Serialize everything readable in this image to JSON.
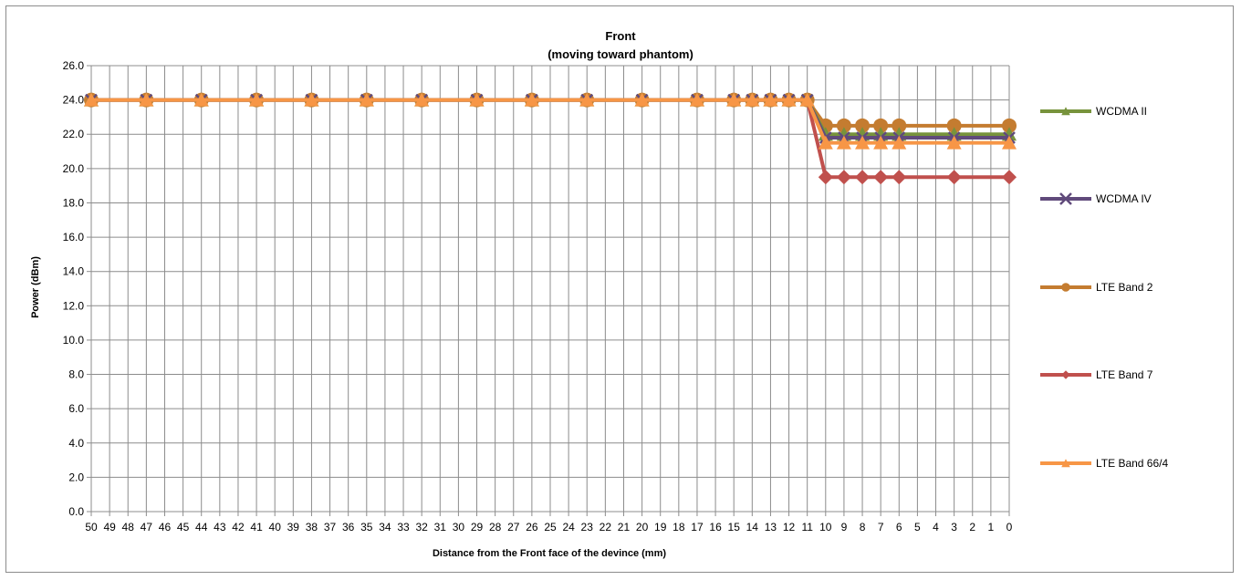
{
  "chart_data": {
    "type": "line",
    "title": "Front",
    "subtitle": "(moving toward phantom)",
    "xlabel": "Distance from the Front  face of the devince (mm)",
    "ylabel": "Power (dBm)",
    "ylim": [
      0,
      26
    ],
    "ytick_step": 2,
    "ytick_labels": [
      "0.0",
      "2.0",
      "4.0",
      "6.0",
      "8.0",
      "10.0",
      "12.0",
      "14.0",
      "16.0",
      "18.0",
      "20.0",
      "22.0",
      "24.0",
      "26.0"
    ],
    "x_categories": [
      50,
      49,
      48,
      47,
      46,
      45,
      44,
      43,
      42,
      41,
      40,
      39,
      38,
      37,
      36,
      35,
      34,
      33,
      32,
      31,
      30,
      29,
      28,
      27,
      26,
      25,
      24,
      23,
      22,
      21,
      20,
      19,
      18,
      17,
      16,
      15,
      14,
      13,
      12,
      11,
      10,
      9,
      8,
      7,
      6,
      5,
      4,
      3,
      2,
      1,
      0
    ],
    "grid": true,
    "legend_position": "right",
    "series": [
      {
        "name": "WCDMA II",
        "color": "#77933c",
        "marker": "triangle",
        "x": [
          50,
          47,
          44,
          41,
          38,
          35,
          32,
          29,
          26,
          23,
          20,
          17,
          15,
          14,
          13,
          12,
          11,
          10,
          9,
          8,
          7,
          6,
          3,
          0
        ],
        "values": [
          24,
          24,
          24,
          24,
          24,
          24,
          24,
          24,
          24,
          24,
          24,
          24,
          24,
          24,
          24,
          24,
          24,
          22,
          22,
          22,
          22,
          22,
          22,
          22
        ]
      },
      {
        "name": "WCDMA IV",
        "color": "#604a7b",
        "marker": "x",
        "x": [
          50,
          47,
          44,
          41,
          38,
          35,
          32,
          29,
          26,
          23,
          20,
          17,
          15,
          14,
          13,
          12,
          11,
          10,
          9,
          8,
          7,
          6,
          3,
          0
        ],
        "values": [
          24,
          24,
          24,
          24,
          24,
          24,
          24,
          24,
          24,
          24,
          24,
          24,
          24,
          24,
          24,
          24,
          24,
          21.8,
          21.8,
          21.8,
          21.8,
          21.8,
          21.8,
          21.8
        ]
      },
      {
        "name": "LTE Band 2",
        "color": "#c47c30",
        "marker": "circle",
        "x": [
          50,
          47,
          44,
          41,
          38,
          35,
          32,
          29,
          26,
          23,
          20,
          17,
          15,
          14,
          13,
          12,
          11,
          10,
          9,
          8,
          7,
          6,
          3,
          0
        ],
        "values": [
          24,
          24,
          24,
          24,
          24,
          24,
          24,
          24,
          24,
          24,
          24,
          24,
          24,
          24,
          24,
          24,
          24,
          22.5,
          22.5,
          22.5,
          22.5,
          22.5,
          22.5,
          22.5
        ]
      },
      {
        "name": "LTE Band 7",
        "color": "#c0504d",
        "marker": "diamond",
        "x": [
          50,
          47,
          44,
          41,
          38,
          35,
          32,
          29,
          26,
          23,
          20,
          17,
          15,
          14,
          13,
          12,
          11,
          10,
          9,
          8,
          7,
          6,
          3,
          0
        ],
        "values": [
          24,
          24,
          24,
          24,
          24,
          24,
          24,
          24,
          24,
          24,
          24,
          24,
          24,
          24,
          24,
          24,
          24,
          19.5,
          19.5,
          19.5,
          19.5,
          19.5,
          19.5,
          19.5
        ]
      },
      {
        "name": "LTE Band 66/4",
        "color": "#f79646",
        "marker": "triangle",
        "x": [
          50,
          47,
          44,
          41,
          38,
          35,
          32,
          29,
          26,
          23,
          20,
          17,
          15,
          14,
          13,
          12,
          11,
          10,
          9,
          8,
          7,
          6,
          3,
          0
        ],
        "values": [
          24,
          24,
          24,
          24,
          24,
          24,
          24,
          24,
          24,
          24,
          24,
          24,
          24,
          24,
          24,
          24,
          24,
          21.5,
          21.5,
          21.5,
          21.5,
          21.5,
          21.5,
          21.5
        ]
      }
    ]
  }
}
